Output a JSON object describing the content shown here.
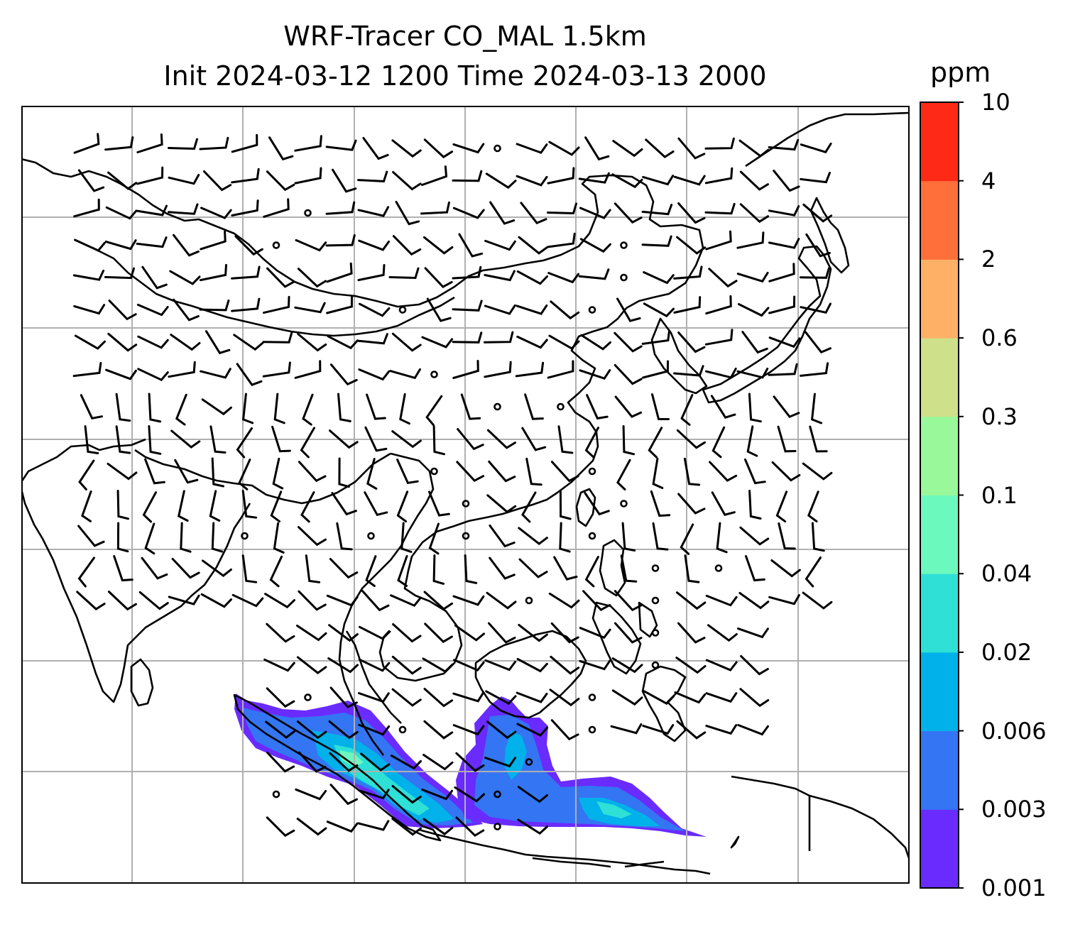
{
  "title": {
    "line1": "WRF-Tracer CO_MAL 1.5km",
    "line2": "Init 2024-03-12 1200 Time 2024-03-13 2000"
  },
  "colorbar": {
    "unit": "ppm",
    "ticks": [
      "0.001",
      "0.003",
      "0.006",
      "0.02",
      "0.04",
      "0.1",
      "0.3",
      "0.6",
      "2",
      "4",
      "10"
    ],
    "colors": [
      "#6a2bff",
      "#3475f3",
      "#00b1ea",
      "#2ee0d6",
      "#6cf9bd",
      "#98f89a",
      "#cfe08a",
      "#fdb066",
      "#fe6f3a",
      "#ff2a16"
    ]
  },
  "map": {
    "gridlines": true,
    "coastline_color": "#000000",
    "grid_color": "#b0b0b0",
    "tracer_levels_present": [
      "0.001",
      "0.003",
      "0.006",
      "0.02",
      "0.04"
    ]
  }
}
